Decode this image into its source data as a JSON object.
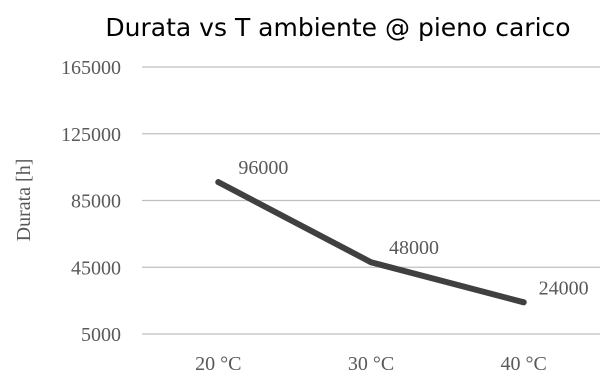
{
  "chart_data": {
    "type": "line",
    "title": "Durata vs T ambiente @ pieno carico",
    "xlabel": "",
    "ylabel": "Durata [h]",
    "categories": [
      "20 °C",
      "30 °C",
      "40 °C"
    ],
    "series": [
      {
        "values": [
          96000,
          48000,
          24000
        ]
      }
    ],
    "data_labels": [
      "96000",
      "48000",
      "24000"
    ],
    "y_ticks": [
      5000,
      45000,
      85000,
      125000,
      165000
    ],
    "ylim": [
      5000,
      165000
    ],
    "grid": true,
    "legend": "none",
    "colors": {
      "series": "#404040",
      "grid": "#bfbfbf",
      "text": "#595959"
    }
  }
}
